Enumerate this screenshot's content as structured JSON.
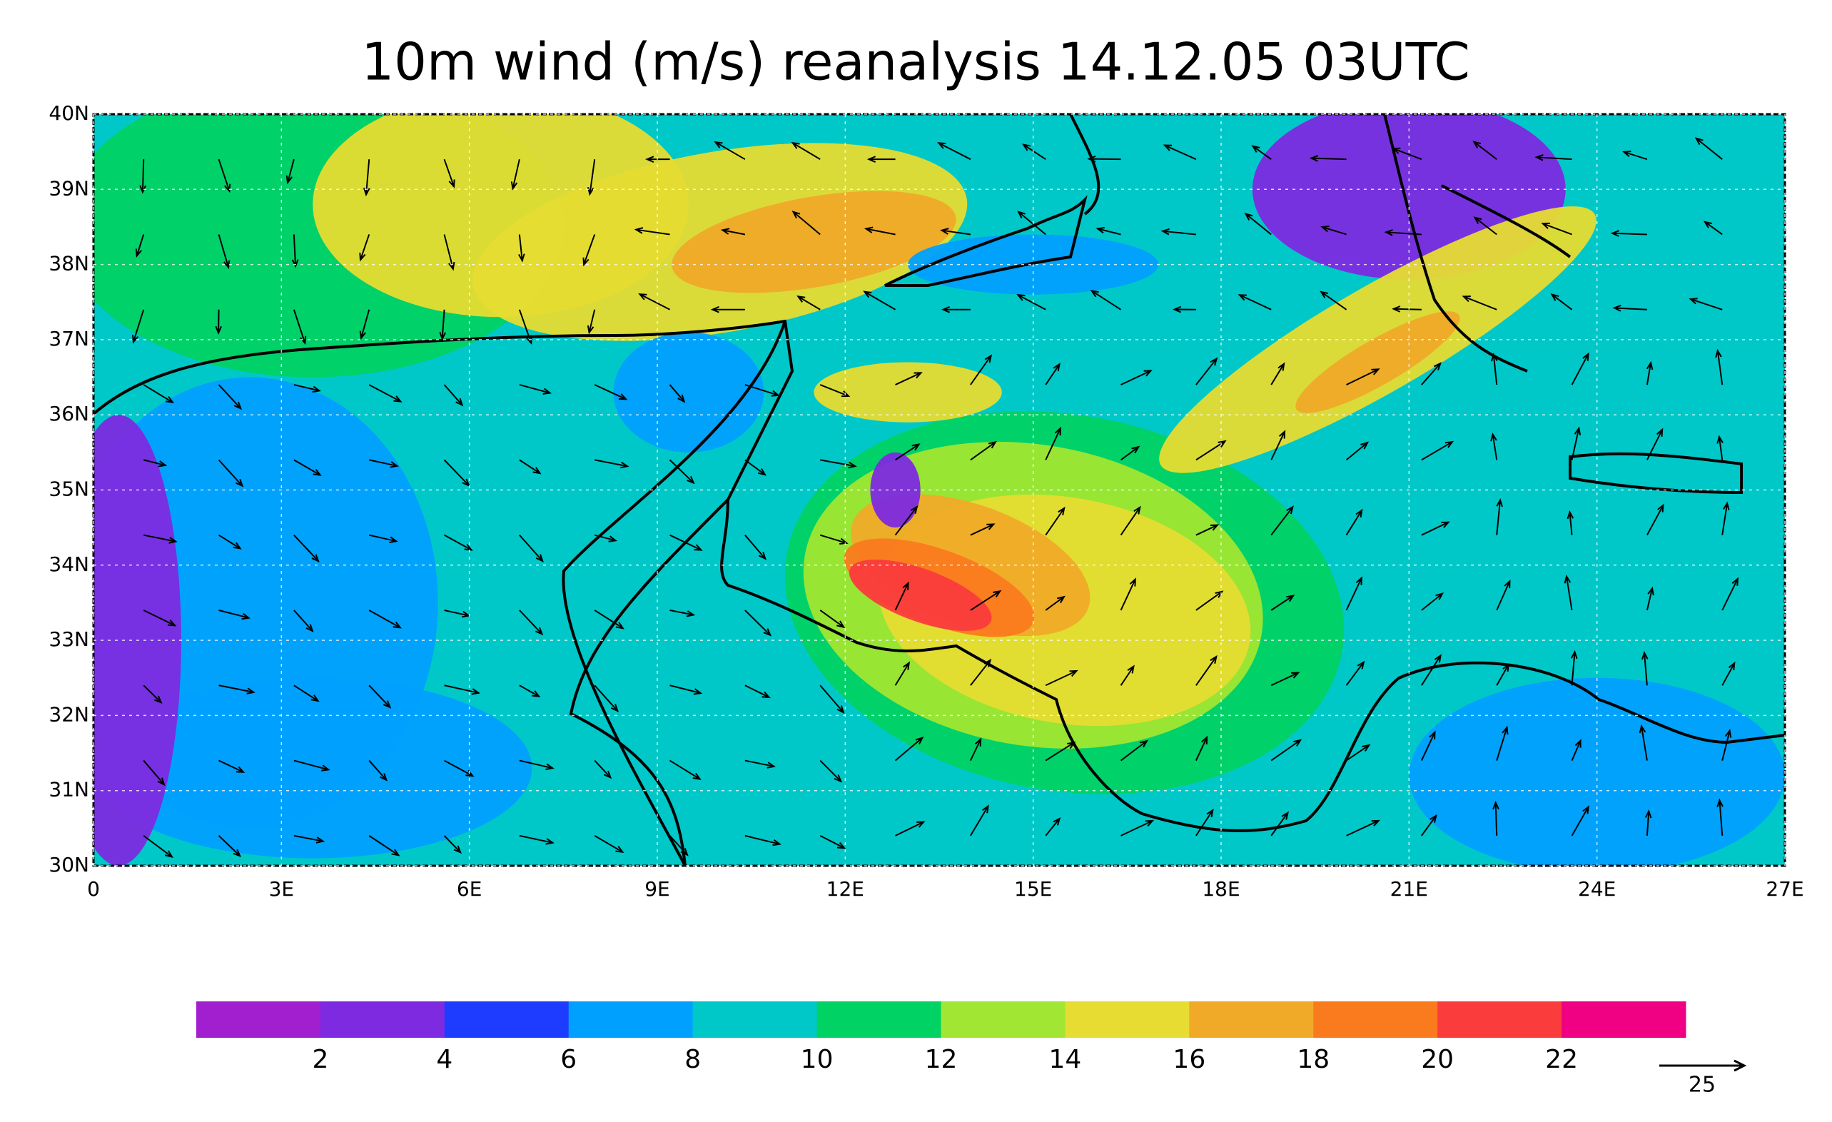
{
  "map": {
    "title": "10m wind (m/s) reanalysis 14.12.05 03UTC",
    "lon_ticks": [
      0,
      {
        "value": 3,
        "label": "3E"
      },
      {
        "value": 6,
        "label": "6E"
      },
      {
        "value": 9,
        "label": "9E"
      },
      {
        "value": 12,
        "label": "12E"
      },
      {
        "value": 15,
        "label": "15E"
      },
      {
        "value": 18,
        "label": "18E"
      },
      {
        "value": 21,
        "label": "21E"
      },
      {
        "value": 24,
        "label": "24E"
      },
      {
        "value": 27,
        "label": "27E"
      }
    ],
    "lat_ticks": [
      {
        "value": 30,
        "label": "30N"
      },
      {
        "value": 31,
        "label": "31N"
      },
      {
        "value": 32,
        "label": "32N"
      },
      {
        "value": 33,
        "label": "33N"
      },
      {
        "value": 34,
        "label": "34N"
      },
      {
        "value": 35,
        "label": "35N"
      },
      {
        "value": 36,
        "label": "36N"
      },
      {
        "value": 37,
        "label": "37N"
      },
      {
        "value": 38,
        "label": "38N"
      },
      {
        "value": 39,
        "label": "39N"
      },
      {
        "value": 40,
        "label": "40N"
      }
    ],
    "colorbar": {
      "colors": [
        "#a21fd0",
        "#7d2ae0",
        "#1e3cff",
        "#00a0ff",
        "#00c8c8",
        "#00d264",
        "#a0e632",
        "#e6dc32",
        "#f0aa28",
        "#fa7a1e",
        "#fa3c3c",
        "#f00082"
      ],
      "labels": [
        2,
        4,
        6,
        8,
        10,
        12,
        14,
        16,
        18,
        20,
        22
      ]
    },
    "reference_vector": 25
  }
}
